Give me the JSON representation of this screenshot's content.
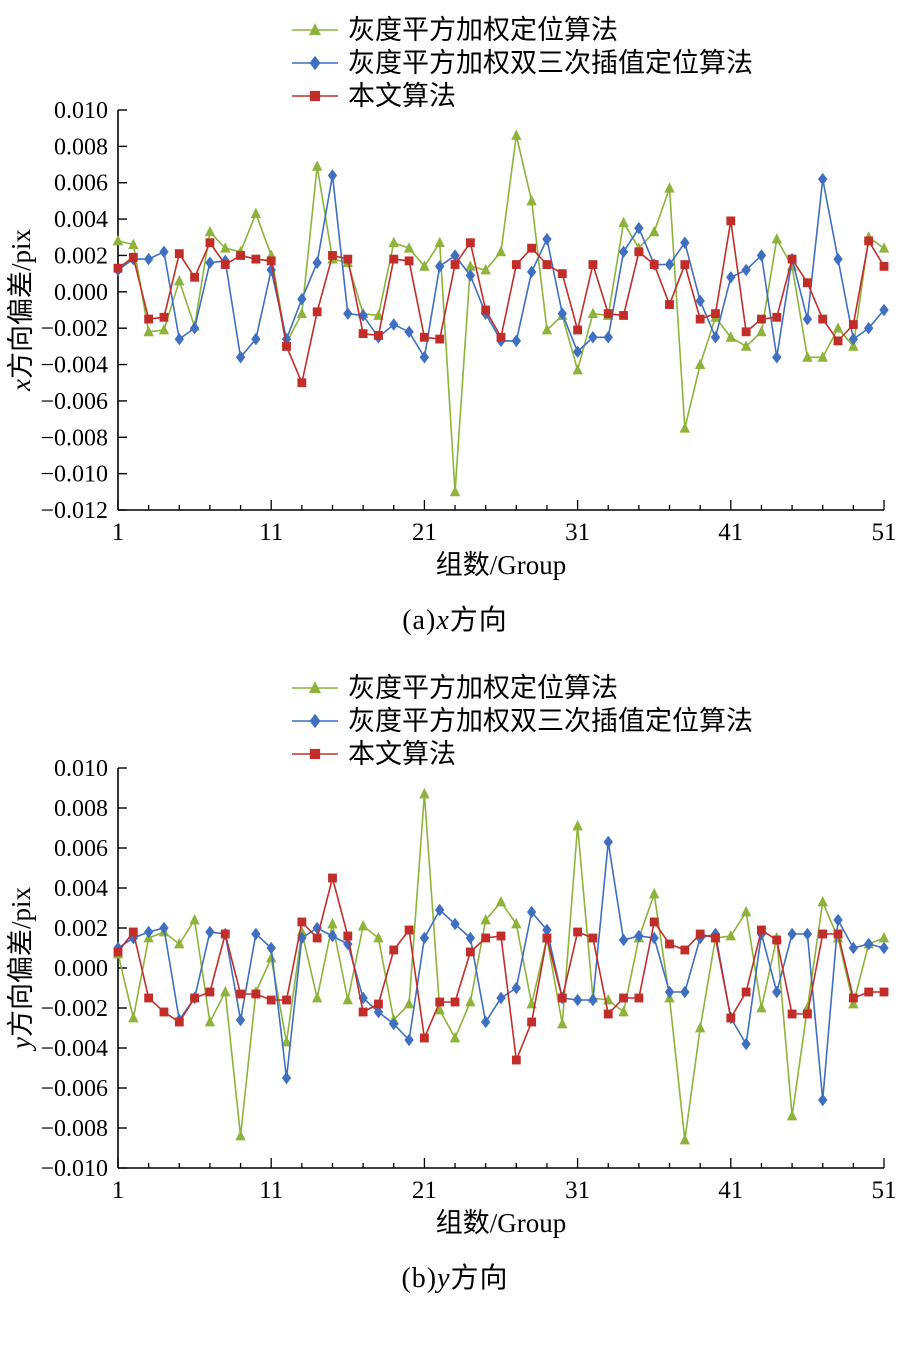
{
  "page": {
    "background": "#ffffff"
  },
  "colors": {
    "green": "#8db33b",
    "blue": "#3f6fc1",
    "red": "#c12e2a",
    "axis": "#000000"
  },
  "chart_data": [
    {
      "type": "line",
      "id": "a",
      "xlabel": "组数/Group",
      "ylabel_var": "x",
      "ylabel_rest": "方向偏差/pix",
      "caption_prefix": "(a)",
      "caption_var": "x",
      "caption_suffix": "方向",
      "x_range": [
        1,
        51
      ],
      "x_ticks": [
        1,
        11,
        21,
        31,
        41,
        51
      ],
      "ylim": [
        -0.012,
        0.01
      ],
      "y_ticks": [
        0.01,
        0.008,
        0.006,
        0.004,
        0.002,
        0.0,
        -0.002,
        -0.004,
        -0.006,
        -0.008,
        -0.01,
        -0.012
      ],
      "grid": false,
      "legend_position": "top",
      "series": [
        {
          "name": "灰度平方加权定位算法",
          "marker": "triangle",
          "color": "#8db33b",
          "values": [
            0.0028,
            0.0026,
            -0.0022,
            -0.0021,
            0.0006,
            -0.0019,
            0.0033,
            0.0024,
            0.0022,
            0.0043,
            0.002,
            -0.0028,
            -0.0012,
            0.0069,
            0.0018,
            0.0016,
            -0.0012,
            -0.0013,
            0.0027,
            0.0024,
            0.0014,
            0.0027,
            -0.011,
            0.0014,
            0.0012,
            0.0022,
            0.0086,
            0.005,
            -0.0021,
            -0.0013,
            -0.0043,
            -0.0012,
            -0.0013,
            0.0038,
            0.0024,
            0.0033,
            0.0057,
            -0.0075,
            -0.004,
            -0.0014,
            -0.0025,
            -0.003,
            -0.0022,
            0.0029,
            0.0014,
            -0.0036,
            -0.0036,
            -0.002,
            -0.003,
            0.003,
            0.0024
          ]
        },
        {
          "name": "灰度平方加权双三次插值定位算法",
          "marker": "diamond",
          "color": "#3f6fc1",
          "values": [
            0.0012,
            0.0018,
            0.0018,
            0.0022,
            -0.0026,
            -0.002,
            0.0016,
            0.0017,
            -0.0036,
            -0.0026,
            0.0012,
            -0.0026,
            -0.0004,
            0.0016,
            0.0064,
            -0.0012,
            -0.0013,
            -0.0025,
            -0.0018,
            -0.0022,
            -0.0036,
            0.0014,
            0.002,
            0.0009,
            -0.0012,
            -0.0027,
            -0.0027,
            0.0011,
            0.0029,
            -0.0012,
            -0.0033,
            -0.0025,
            -0.0025,
            0.0022,
            0.0035,
            0.0015,
            0.0015,
            0.0027,
            -0.0005,
            -0.0025,
            0.0008,
            0.0012,
            0.002,
            -0.0036,
            0.0018,
            -0.0015,
            0.0062,
            0.0018,
            -0.0026,
            -0.002,
            -0.001
          ]
        },
        {
          "name": "本文算法",
          "marker": "square",
          "color": "#c12e2a",
          "values": [
            0.0013,
            0.0019,
            -0.0015,
            -0.0014,
            0.0021,
            0.0008,
            0.0027,
            0.0015,
            0.002,
            0.0018,
            0.0017,
            -0.003,
            -0.005,
            -0.0011,
            0.002,
            0.0018,
            -0.0023,
            -0.0024,
            0.0018,
            0.0017,
            -0.0025,
            -0.0026,
            0.0015,
            0.0027,
            -0.001,
            -0.0025,
            0.0015,
            0.0024,
            0.0015,
            0.001,
            -0.0021,
            0.0015,
            -0.0012,
            -0.0013,
            0.0022,
            0.0015,
            -0.0007,
            0.0015,
            -0.0015,
            -0.0012,
            0.0039,
            -0.0022,
            -0.0015,
            -0.0014,
            0.0018,
            0.0005,
            -0.0015,
            -0.0027,
            -0.0018,
            0.0028,
            0.0014
          ]
        }
      ]
    },
    {
      "type": "line",
      "id": "b",
      "xlabel": "组数/Group",
      "ylabel_var": "y",
      "ylabel_rest": "方向偏差/pix",
      "caption_prefix": "(b)",
      "caption_var": "y",
      "caption_suffix": "方向",
      "x_range": [
        1,
        51
      ],
      "x_ticks": [
        1,
        11,
        21,
        31,
        41,
        51
      ],
      "ylim": [
        -0.01,
        0.01
      ],
      "y_ticks": [
        0.01,
        0.008,
        0.006,
        0.004,
        0.002,
        0.0,
        -0.002,
        -0.004,
        -0.006,
        -0.008,
        -0.01
      ],
      "grid": false,
      "legend_position": "top",
      "series": [
        {
          "name": "灰度平方加权定位算法",
          "marker": "triangle",
          "color": "#8db33b",
          "values": [
            0.0007,
            -0.0025,
            0.0015,
            0.0018,
            0.0012,
            0.0024,
            -0.0027,
            -0.0012,
            -0.0084,
            -0.0012,
            0.0005,
            -0.0037,
            0.0018,
            -0.0015,
            0.0022,
            -0.0016,
            0.0021,
            0.0015,
            -0.0026,
            -0.0018,
            0.0087,
            -0.0021,
            -0.0035,
            -0.0017,
            0.0024,
            0.0033,
            0.0022,
            -0.0018,
            0.0015,
            -0.0028,
            0.0071,
            -0.0015,
            -0.0016,
            -0.0022,
            0.0015,
            0.0037,
            -0.0015,
            -0.0086,
            -0.003,
            0.0015,
            0.0016,
            0.0028,
            -0.002,
            0.0015,
            -0.0074,
            -0.002,
            0.0033,
            0.0015,
            -0.0018,
            0.0012,
            0.0015
          ]
        },
        {
          "name": "灰度平方加权双三次插值定位算法",
          "marker": "diamond",
          "color": "#3f6fc1",
          "values": [
            0.001,
            0.0015,
            0.0018,
            0.002,
            -0.0026,
            -0.0015,
            0.0018,
            0.0017,
            -0.0026,
            0.0017,
            0.001,
            -0.0055,
            0.0015,
            0.002,
            0.0016,
            0.0012,
            -0.0015,
            -0.0022,
            -0.0028,
            -0.0036,
            0.0015,
            0.0029,
            0.0022,
            0.0015,
            -0.0027,
            -0.0015,
            -0.001,
            0.0028,
            0.0019,
            -0.0015,
            -0.0016,
            -0.0016,
            0.0063,
            0.0014,
            0.0016,
            0.0015,
            -0.0012,
            -0.0012,
            0.0015,
            0.0017,
            -0.0025,
            -0.0038,
            0.0017,
            -0.0012,
            0.0017,
            0.0017,
            -0.0066,
            0.0024,
            0.001,
            0.0012,
            0.001
          ]
        },
        {
          "name": "本文算法",
          "marker": "square",
          "color": "#c12e2a",
          "values": [
            0.0008,
            0.0018,
            -0.0015,
            -0.0022,
            -0.0027,
            -0.0015,
            -0.0012,
            0.0017,
            -0.0013,
            -0.0013,
            -0.0016,
            -0.0016,
            0.0023,
            0.0015,
            0.0045,
            0.0016,
            -0.0022,
            -0.0018,
            0.0009,
            0.0019,
            -0.0035,
            -0.0017,
            -0.0017,
            0.0008,
            0.0015,
            0.0016,
            -0.0046,
            -0.0027,
            0.0015,
            -0.0015,
            0.0018,
            0.0015,
            -0.0023,
            -0.0015,
            -0.0015,
            0.0023,
            0.0012,
            0.0009,
            0.0017,
            0.0015,
            -0.0025,
            -0.0012,
            0.0019,
            0.0014,
            -0.0023,
            -0.0023,
            0.0017,
            0.0017,
            -0.0015,
            -0.0012,
            -0.0012
          ]
        }
      ]
    }
  ]
}
